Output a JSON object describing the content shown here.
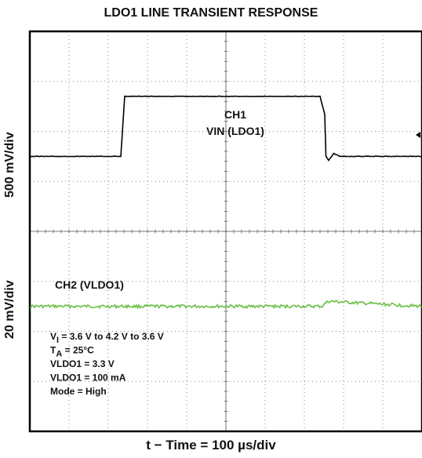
{
  "chart_data": {
    "type": "line",
    "title": "LDO1 LINE TRANSIENT RESPONSE",
    "xlabel": "t − Time = 100 µs/div",
    "grid": true,
    "divisions": {
      "x": 10,
      "y": 8
    },
    "channels": [
      {
        "name": "CH1",
        "label": "VIN (LDO1)",
        "scale_label": "500 mV/div",
        "color": "#000000",
        "units": "V",
        "x_div": [
          0,
          2.32,
          2.42,
          2.6,
          7.4,
          7.52,
          7.55,
          7.62,
          7.75,
          7.9,
          10
        ],
        "y": [
          3.6,
          3.6,
          4.2,
          4.2,
          4.2,
          4.02,
          3.6,
          3.56,
          3.63,
          3.6,
          3.6
        ]
      },
      {
        "name": "CH2",
        "label": "CH2 (VLDO1)",
        "scale_label": "20 mV/div",
        "color": "#6abf45",
        "units": "V",
        "x_div": [
          0,
          2.35,
          2.6,
          7.45,
          7.6,
          10
        ],
        "y": [
          3.3,
          3.3,
          3.3,
          3.3,
          3.302,
          3.3
        ]
      }
    ],
    "conditions": [
      {
        "sym": "V",
        "sub": "I",
        "text": " = 3.6 V to 4.2 V to 3.6 V"
      },
      {
        "sym": "T",
        "sub": "A",
        "text": " = 25°C"
      },
      {
        "sym": "",
        "sub": "",
        "text": "VLDO1 = 3.3 V"
      },
      {
        "sym": "",
        "sub": "",
        "text": "VLDO1 = 100 mA"
      },
      {
        "sym": "",
        "sub": "",
        "text": "Mode = High"
      }
    ]
  }
}
